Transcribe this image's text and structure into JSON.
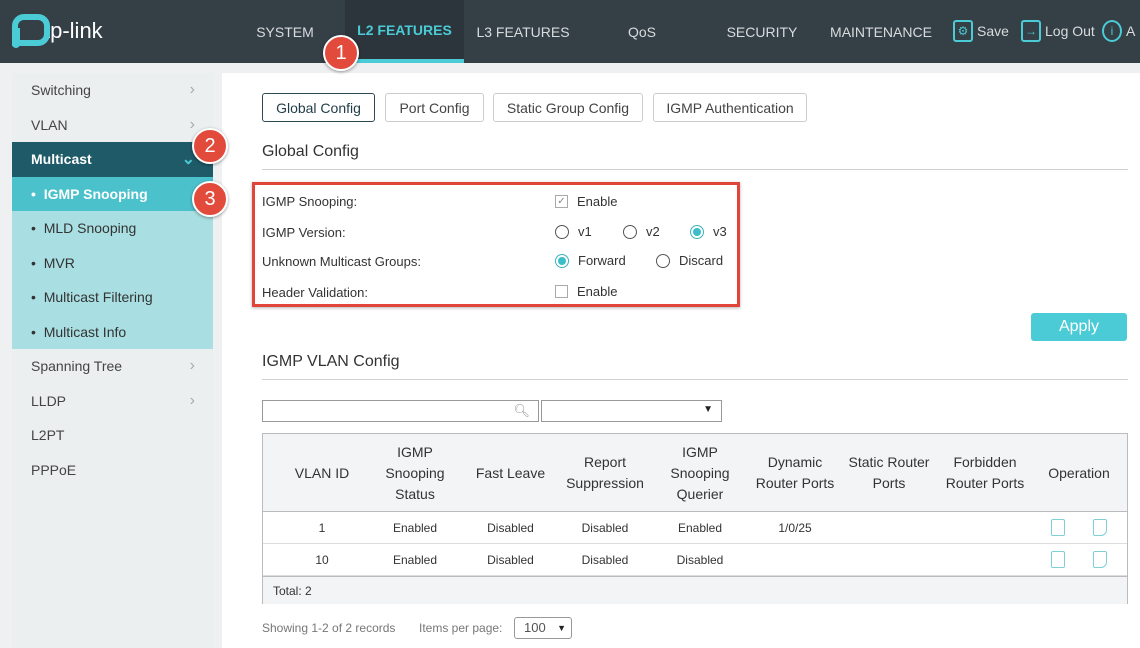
{
  "brand": "tp-link",
  "nav": [
    "SYSTEM",
    "L2 FEATURES",
    "L3 FEATURES",
    "QoS",
    "SECURITY",
    "MAINTENANCE"
  ],
  "tools": {
    "save": "Save",
    "logout": "Log Out",
    "about": "A"
  },
  "sidebar": {
    "items": [
      {
        "label": "Switching"
      },
      {
        "label": "VLAN"
      },
      {
        "label": "Multicast"
      }
    ],
    "sub": [
      {
        "label": "IGMP Snooping"
      },
      {
        "label": "MLD Snooping"
      },
      {
        "label": "MVR"
      },
      {
        "label": "Multicast Filtering"
      },
      {
        "label": "Multicast Info"
      }
    ],
    "rest": [
      {
        "label": "Spanning Tree"
      },
      {
        "label": "LLDP"
      },
      {
        "label": "L2PT"
      },
      {
        "label": "PPPoE"
      }
    ]
  },
  "tabs": [
    "Global Config",
    "Port Config",
    "Static Group Config",
    "IGMP Authentication"
  ],
  "global": {
    "title": "Global Config",
    "igmp_snooping": "IGMP Snooping:",
    "igmp_snooping_enable": "Enable",
    "igmp_snooping_checked": true,
    "version": "IGMP Version:",
    "versions": [
      "v1",
      "v2",
      "v3"
    ],
    "version_selected": "v3",
    "unknown": "Unknown Multicast Groups:",
    "unknown_opts": [
      "Forward",
      "Discard"
    ],
    "unknown_selected": "Forward",
    "header": "Header Validation:",
    "header_enable": "Enable",
    "header_checked": false
  },
  "apply": "Apply",
  "vlan": {
    "title": "IGMP VLAN Config",
    "columns": [
      "VLAN ID",
      "IGMP Snooping Status",
      "Fast Leave",
      "Report Suppression",
      "IGMP Snooping Querier",
      "Dynamic Router Ports",
      "Static Router Ports",
      "Forbidden Router Ports",
      "Operation"
    ],
    "rows": [
      [
        "1",
        "Enabled",
        "Disabled",
        "Disabled",
        "Enabled",
        "1/0/25",
        "",
        ""
      ],
      [
        "10",
        "Enabled",
        "Disabled",
        "Disabled",
        "Disabled",
        "",
        "",
        ""
      ]
    ],
    "total": "Total: 2",
    "showing": "Showing 1-2 of 2 records",
    "ipp_label": "Items per page:",
    "ipp": "100"
  },
  "badges": [
    "1",
    "2",
    "3"
  ],
  "colors": {
    "accent": "#4acbd6",
    "topbar": "#353f46",
    "badge": "#e24a3b"
  }
}
